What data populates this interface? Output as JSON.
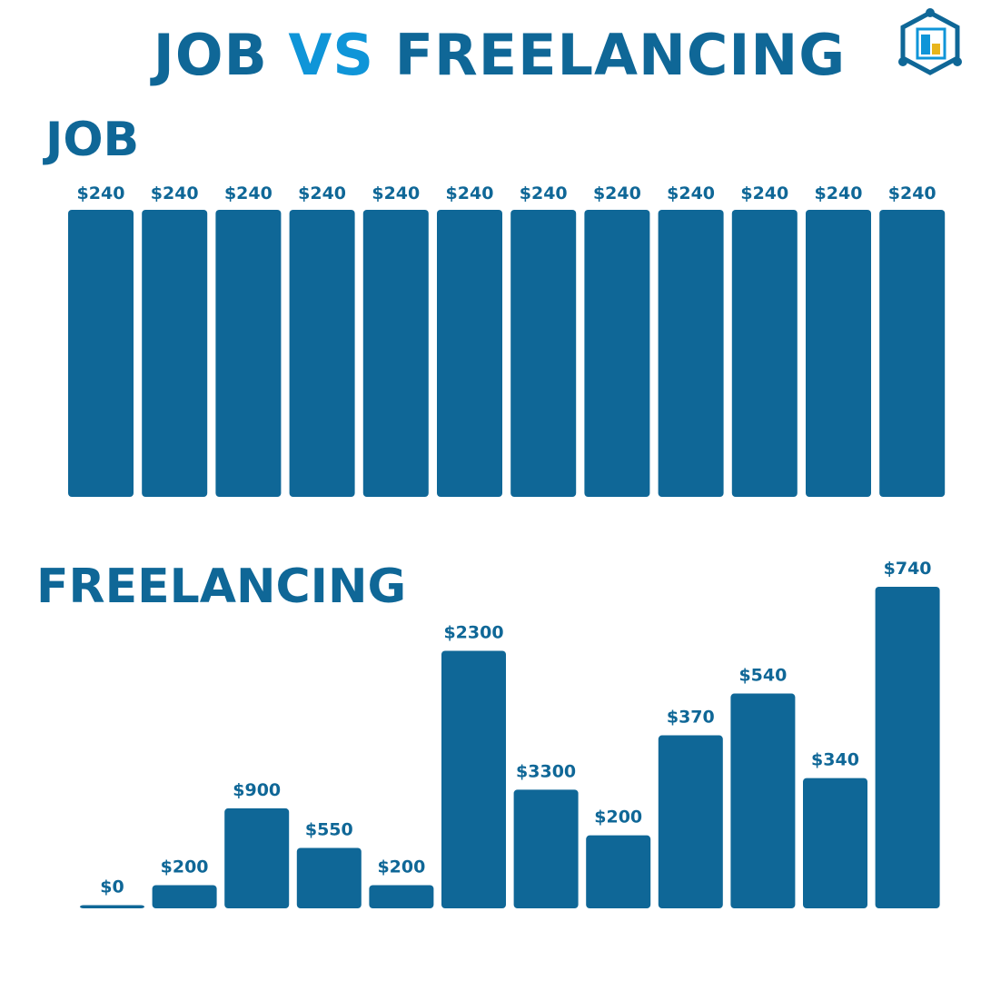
{
  "title": {
    "part1": "JOB",
    "part2": "VS",
    "part3": "FREELANCING"
  },
  "colors": {
    "primary": "#0f6797",
    "accent": "#0f95d8",
    "logo_gold": "#e8b51c"
  },
  "logo": {
    "icon": "hexagon-cube-logo-icon"
  },
  "chart_data": [
    {
      "type": "bar",
      "title": "JOB",
      "values": [
        240,
        240,
        240,
        240,
        240,
        240,
        240,
        240,
        240,
        240,
        240,
        240
      ],
      "labels": [
        "$240",
        "$240",
        "$240",
        "$240",
        "$240",
        "$240",
        "$240",
        "$240",
        "$240",
        "$240",
        "$240",
        "$240"
      ]
    },
    {
      "type": "bar",
      "title": "FREELANCING",
      "values": [
        0,
        200,
        900,
        550,
        200,
        2300,
        3300,
        200,
        370,
        540,
        340,
        740
      ],
      "labels": [
        "$0",
        "$200",
        "$900",
        "$550",
        "$200",
        "$2300",
        "$3300",
        "$200",
        "$370",
        "$540",
        "$340",
        "$740"
      ]
    }
  ]
}
